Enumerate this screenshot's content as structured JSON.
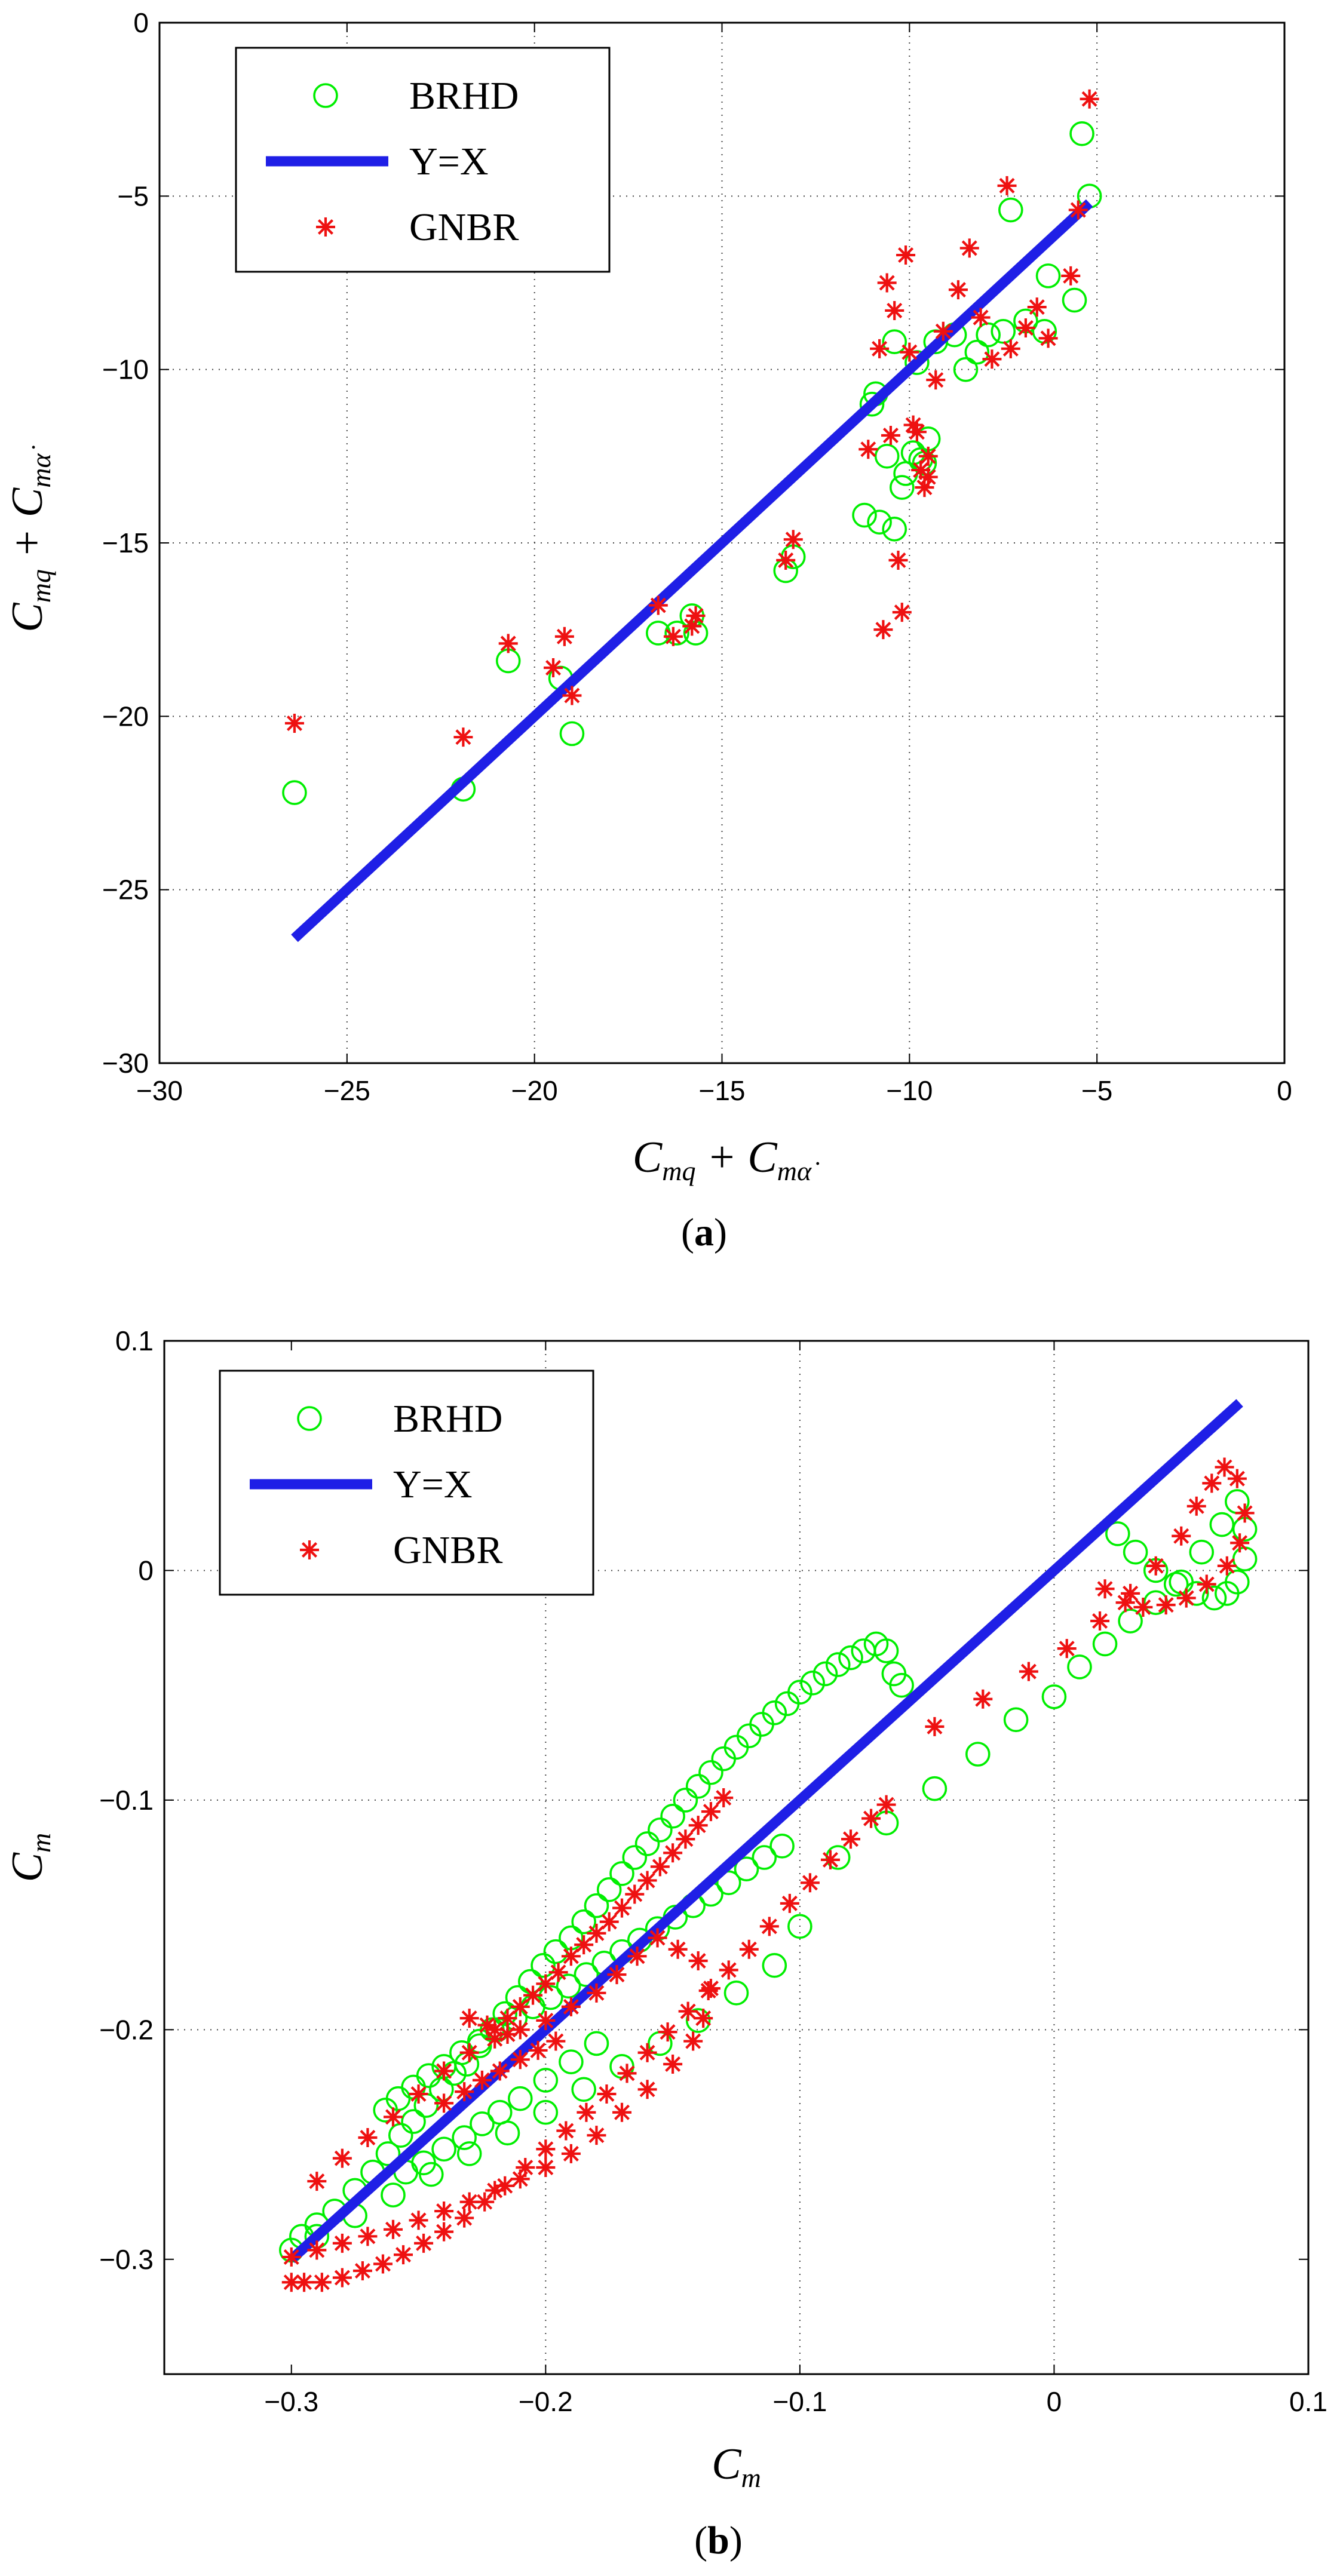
{
  "colors": {
    "brhd": "#00ee00",
    "line": "#1f1fe6",
    "gnbr": "#ee1111",
    "grid": "#444444"
  },
  "chart_data": [
    {
      "type": "scatter",
      "caption_open": "(",
      "caption_letter": "a",
      "caption_close": ")",
      "xlabel": "C_mq + C_mα̇",
      "ylabel": "C_mq + C_mα̇",
      "xlim": [
        -30,
        0
      ],
      "ylim": [
        -30,
        0
      ],
      "xticks": [
        -30,
        -25,
        -20,
        -15,
        -10,
        -5,
        0
      ],
      "yticks": [
        -30,
        -25,
        -20,
        -15,
        -10,
        -5,
        0
      ],
      "xtick_labels": [
        "−30",
        "−25",
        "−20",
        "−15",
        "−10",
        "−5",
        "0"
      ],
      "ytick_labels": [
        "−30",
        "−25",
        "−20",
        "−15",
        "−10",
        "−5",
        "0"
      ],
      "grid": true,
      "legend_position": "top-left",
      "legend": [
        "BRHD",
        "Y=X",
        "GNBR"
      ],
      "series": [
        {
          "name": "BRHD",
          "marker": "circle",
          "x": [
            -26.4,
            -21.9,
            -20.7,
            -19.3,
            -19.0,
            -16.7,
            -16.2,
            -15.8,
            -15.7,
            -13.3,
            -13.1,
            -11.2,
            -10.8,
            -10.6,
            -10.4,
            -10.2,
            -10.1,
            -9.9,
            -9.7,
            -9.6,
            -9.5,
            -9.3,
            -8.8,
            -8.5,
            -8.2,
            -7.9,
            -7.5,
            -7.3,
            -6.9,
            -6.4,
            -6.3,
            -5.6,
            -5.4,
            -5.2,
            -10.9,
            -11.0,
            -10.4,
            -9.8
          ],
          "y": [
            -22.2,
            -22.1,
            -18.4,
            -18.9,
            -20.5,
            -17.6,
            -17.6,
            -17.1,
            -17.6,
            -15.8,
            -15.4,
            -14.2,
            -14.4,
            -12.5,
            -14.6,
            -13.4,
            -13.0,
            -12.4,
            -12.6,
            -12.7,
            -12.0,
            -9.2,
            -9.0,
            -10.0,
            -9.5,
            -9.0,
            -8.9,
            -5.4,
            -8.6,
            -8.9,
            -7.3,
            -8.0,
            -3.2,
            -5.0,
            -10.7,
            -11.0,
            -9.2,
            -9.8
          ]
        },
        {
          "name": "Y=X",
          "x": [
            -26.4,
            -5.2
          ],
          "y": [
            -26.4,
            -5.2
          ]
        },
        {
          "name": "GNBR",
          "marker": "star",
          "x": [
            -26.4,
            -21.9,
            -20.7,
            -19.5,
            -19.2,
            -19.0,
            -16.7,
            -16.3,
            -15.8,
            -15.7,
            -13.3,
            -13.1,
            -11.1,
            -10.8,
            -10.7,
            -10.6,
            -10.5,
            -10.4,
            -10.3,
            -10.2,
            -10.1,
            -9.9,
            -9.8,
            -9.7,
            -9.6,
            -9.5,
            -9.3,
            -9.1,
            -8.7,
            -8.4,
            -8.1,
            -7.8,
            -7.4,
            -7.3,
            -6.9,
            -6.6,
            -6.3,
            -5.7,
            -5.5,
            -5.2,
            -10.0,
            -9.5
          ],
          "y": [
            -20.2,
            -20.6,
            -17.9,
            -18.6,
            -17.7,
            -19.4,
            -16.8,
            -17.7,
            -17.4,
            -17.1,
            -15.5,
            -14.9,
            -12.3,
            -9.4,
            -17.5,
            -7.5,
            -11.9,
            -8.3,
            -15.5,
            -17.0,
            -6.7,
            -11.6,
            -11.8,
            -12.9,
            -13.4,
            -12.5,
            -10.3,
            -8.9,
            -7.7,
            -6.5,
            -8.5,
            -9.7,
            -4.7,
            -9.4,
            -8.8,
            -8.2,
            -9.1,
            -7.3,
            -5.4,
            -2.2,
            -9.5,
            -13.1
          ]
        }
      ]
    },
    {
      "type": "scatter",
      "caption_open": "(",
      "caption_letter": "b",
      "caption_close": ")",
      "xlabel": "C_m",
      "ylabel": "C_m",
      "xlim": [
        -0.35,
        0.1
      ],
      "ylim": [
        -0.35,
        0.1
      ],
      "xticks": [
        -0.3,
        -0.2,
        -0.1,
        0,
        0.1
      ],
      "yticks": [
        -0.3,
        -0.2,
        -0.1,
        0,
        0.1
      ],
      "xtick_labels": [
        "−0.3",
        "−0.2",
        "−0.1",
        "0",
        "0.1"
      ],
      "ytick_labels": [
        "−0.3",
        "−0.2",
        "−0.1",
        "0",
        "0.1"
      ],
      "grid": true,
      "legend_position": "top-left",
      "legend": [
        "BRHD",
        "Y=X",
        "GNBR"
      ],
      "series": [
        {
          "name": "BRHD",
          "marker": "circle",
          "x": [
            -0.3,
            -0.296,
            -0.29,
            -0.283,
            -0.275,
            -0.268,
            -0.262,
            -0.257,
            -0.252,
            -0.247,
            -0.241,
            -0.236,
            -0.231,
            -0.226,
            -0.221,
            -0.216,
            -0.211,
            -0.206,
            -0.201,
            -0.196,
            -0.19,
            -0.185,
            -0.18,
            -0.175,
            -0.17,
            -0.165,
            -0.16,
            -0.155,
            -0.15,
            -0.145,
            -0.14,
            -0.135,
            -0.13,
            -0.125,
            -0.12,
            -0.115,
            -0.11,
            -0.105,
            -0.1,
            -0.095,
            -0.09,
            -0.085,
            -0.08,
            -0.075,
            -0.07,
            -0.066,
            -0.063,
            -0.06,
            -0.263,
            -0.258,
            -0.252,
            -0.246,
            -0.24,
            -0.233,
            -0.226,
            -0.219,
            -0.212,
            -0.205,
            -0.198,
            -0.191,
            -0.184,
            -0.177,
            -0.17,
            -0.163,
            -0.156,
            -0.149,
            -0.142,
            -0.135,
            -0.128,
            -0.121,
            -0.114,
            -0.107,
            -0.29,
            -0.275,
            -0.26,
            -0.245,
            -0.23,
            -0.215,
            -0.2,
            -0.185,
            -0.17,
            -0.155,
            -0.14,
            -0.125,
            -0.11,
            -0.1,
            -0.085,
            -0.066,
            -0.047,
            -0.03,
            -0.015,
            0.0,
            0.01,
            0.02,
            0.03,
            0.04,
            0.05,
            0.058,
            0.066,
            0.072,
            0.075,
            0.075,
            0.072,
            0.068,
            0.063,
            0.056,
            0.048,
            0.04,
            0.032,
            0.025,
            -0.255,
            -0.248,
            -0.24,
            -0.232,
            -0.225,
            -0.218,
            -0.21,
            -0.2,
            -0.19,
            -0.18
          ],
          "y": [
            -0.296,
            -0.29,
            -0.285,
            -0.279,
            -0.27,
            -0.262,
            -0.254,
            -0.246,
            -0.24,
            -0.233,
            -0.226,
            -0.219,
            -0.215,
            -0.207,
            -0.2,
            -0.193,
            -0.186,
            -0.179,
            -0.172,
            -0.166,
            -0.16,
            -0.153,
            -0.146,
            -0.139,
            -0.132,
            -0.125,
            -0.119,
            -0.113,
            -0.107,
            -0.1,
            -0.094,
            -0.088,
            -0.082,
            -0.077,
            -0.072,
            -0.067,
            -0.062,
            -0.058,
            -0.053,
            -0.049,
            -0.045,
            -0.041,
            -0.038,
            -0.035,
            -0.032,
            -0.035,
            -0.045,
            -0.05,
            -0.235,
            -0.23,
            -0.225,
            -0.22,
            -0.216,
            -0.21,
            -0.205,
            -0.2,
            -0.195,
            -0.19,
            -0.186,
            -0.181,
            -0.176,
            -0.171,
            -0.166,
            -0.161,
            -0.156,
            -0.151,
            -0.146,
            -0.141,
            -0.136,
            -0.13,
            -0.125,
            -0.12,
            -0.29,
            -0.281,
            -0.272,
            -0.263,
            -0.254,
            -0.245,
            -0.236,
            -0.226,
            -0.216,
            -0.206,
            -0.196,
            -0.184,
            -0.172,
            -0.155,
            -0.125,
            -0.11,
            -0.095,
            -0.08,
            -0.065,
            -0.055,
            -0.042,
            -0.032,
            -0.022,
            -0.014,
            -0.005,
            0.008,
            0.02,
            0.03,
            0.018,
            0.005,
            -0.005,
            -0.01,
            -0.012,
            -0.01,
            -0.006,
            0.0,
            0.008,
            0.016,
            -0.262,
            -0.258,
            -0.252,
            -0.247,
            -0.241,
            -0.236,
            -0.23,
            -0.222,
            -0.214,
            -0.206
          ]
        },
        {
          "name": "Y=X",
          "x": [
            -0.3,
            0.073
          ],
          "y": [
            -0.3,
            0.073
          ]
        },
        {
          "name": "GNBR",
          "marker": "star",
          "x": [
            -0.3,
            -0.295,
            -0.288,
            -0.28,
            -0.272,
            -0.264,
            -0.256,
            -0.248,
            -0.24,
            -0.232,
            -0.224,
            -0.216,
            -0.208,
            -0.2,
            -0.192,
            -0.184,
            -0.176,
            -0.168,
            -0.16,
            -0.152,
            -0.144,
            -0.136,
            -0.128,
            -0.12,
            -0.112,
            -0.104,
            -0.096,
            -0.088,
            -0.08,
            -0.072,
            -0.066,
            -0.3,
            -0.29,
            -0.28,
            -0.27,
            -0.26,
            -0.25,
            -0.24,
            -0.23,
            -0.22,
            -0.21,
            -0.2,
            -0.19,
            -0.18,
            -0.17,
            -0.16,
            -0.15,
            -0.142,
            -0.138,
            -0.135,
            -0.14,
            -0.148,
            -0.156,
            -0.164,
            -0.172,
            -0.18,
            -0.19,
            -0.2,
            -0.21,
            -0.22,
            -0.23,
            -0.24,
            -0.25,
            -0.26,
            -0.27,
            -0.28,
            -0.29,
            -0.22,
            -0.215,
            -0.21,
            -0.205,
            -0.2,
            -0.195,
            -0.19,
            -0.185,
            -0.18,
            -0.175,
            -0.17,
            -0.165,
            -0.16,
            -0.155,
            -0.15,
            -0.145,
            -0.14,
            -0.135,
            -0.13,
            -0.047,
            -0.028,
            -0.01,
            0.005,
            0.018,
            0.03,
            0.04,
            0.05,
            0.056,
            0.062,
            0.067,
            0.072,
            0.075,
            0.073,
            0.068,
            0.06,
            0.052,
            0.044,
            0.035,
            0.028,
            0.02,
            -0.24,
            -0.232,
            -0.225,
            -0.218,
            -0.21,
            -0.203,
            -0.196,
            -0.23,
            -0.223,
            -0.215
          ],
          "y": [
            -0.31,
            -0.31,
            -0.31,
            -0.308,
            -0.305,
            -0.302,
            -0.298,
            -0.293,
            -0.288,
            -0.282,
            -0.275,
            -0.268,
            -0.26,
            -0.252,
            -0.244,
            -0.236,
            -0.228,
            -0.219,
            -0.21,
            -0.201,
            -0.192,
            -0.183,
            -0.174,
            -0.165,
            -0.155,
            -0.145,
            -0.136,
            -0.126,
            -0.117,
            -0.108,
            -0.102,
            -0.299,
            -0.296,
            -0.293,
            -0.29,
            -0.287,
            -0.283,
            -0.279,
            -0.275,
            -0.27,
            -0.265,
            -0.26,
            -0.254,
            -0.246,
            -0.236,
            -0.226,
            -0.215,
            -0.205,
            -0.195,
            -0.182,
            -0.17,
            -0.165,
            -0.16,
            -0.168,
            -0.176,
            -0.184,
            -0.19,
            -0.196,
            -0.2,
            -0.204,
            -0.21,
            -0.218,
            -0.228,
            -0.238,
            -0.247,
            -0.256,
            -0.266,
            -0.2,
            -0.195,
            -0.19,
            -0.185,
            -0.18,
            -0.175,
            -0.168,
            -0.163,
            -0.158,
            -0.153,
            -0.147,
            -0.141,
            -0.135,
            -0.129,
            -0.123,
            -0.117,
            -0.111,
            -0.105,
            -0.099,
            -0.068,
            -0.056,
            -0.044,
            -0.034,
            -0.022,
            -0.01,
            0.002,
            0.015,
            0.028,
            0.038,
            0.045,
            0.04,
            0.025,
            0.012,
            0.002,
            -0.006,
            -0.012,
            -0.015,
            -0.016,
            -0.014,
            -0.008,
            -0.232,
            -0.227,
            -0.222,
            -0.218,
            -0.213,
            -0.209,
            -0.205,
            -0.195,
            -0.198,
            -0.202
          ]
        }
      ]
    }
  ]
}
